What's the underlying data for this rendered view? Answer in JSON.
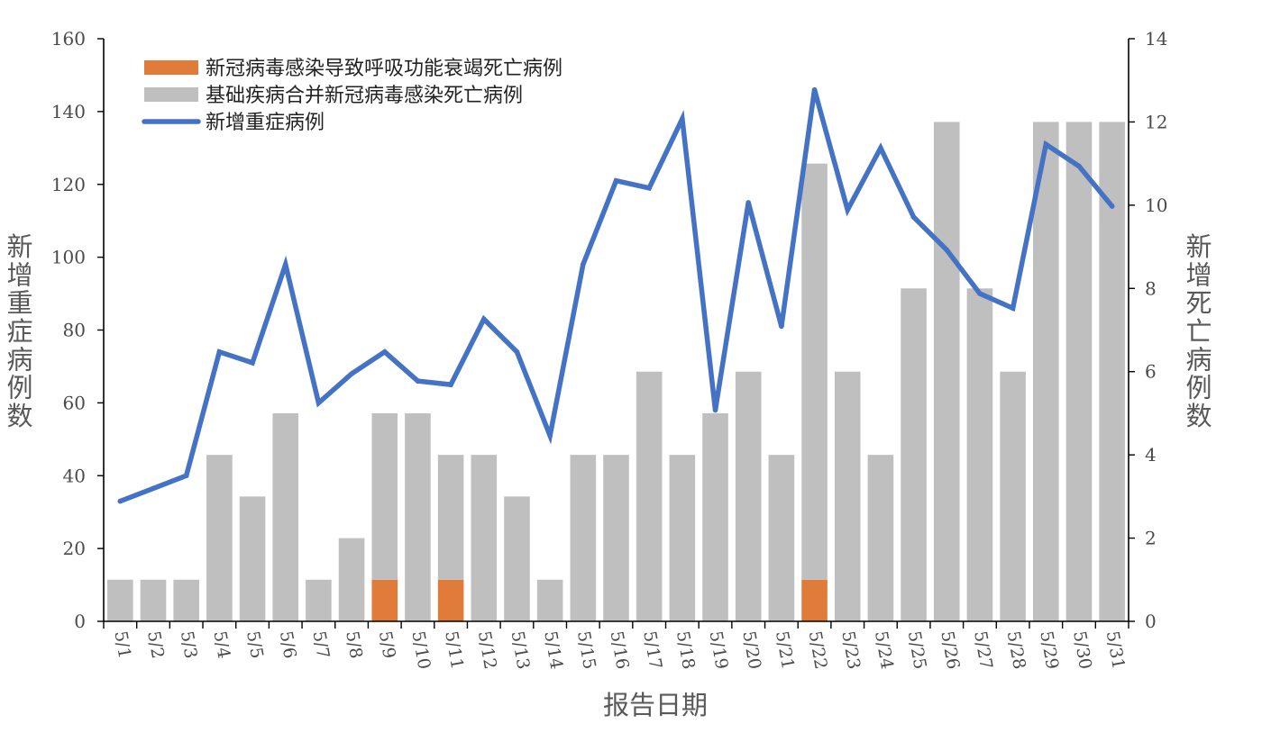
{
  "chart_data": {
    "type": "bar",
    "categories": [
      "5/1",
      "5/2",
      "5/3",
      "5/4",
      "5/5",
      "5/6",
      "5/7",
      "5/8",
      "5/9",
      "5/10",
      "5/11",
      "5/12",
      "5/13",
      "5/14",
      "5/15",
      "5/16",
      "5/17",
      "5/18",
      "5/19",
      "5/20",
      "5/21",
      "5/22",
      "5/23",
      "5/24",
      "5/25",
      "5/26",
      "5/27",
      "5/28",
      "5/29",
      "5/30",
      "5/31"
    ],
    "xlabel": "报告日期",
    "ylabel_left": "新增重症病例数",
    "ylabel_right": "新增死亡病例数",
    "ylim_left": [
      0,
      160
    ],
    "yticks_left": [
      0,
      20,
      40,
      60,
      80,
      100,
      120,
      140,
      160
    ],
    "ylim_right": [
      0,
      14
    ],
    "yticks_right": [
      0,
      2,
      4,
      6,
      8,
      10,
      12,
      14
    ],
    "grid": false,
    "legend_position": "top-left",
    "stacked": true,
    "series": [
      {
        "name": "新冠病毒感染导致呼吸功能衰竭死亡病例",
        "type": "bar",
        "axis": "right",
        "color": "#E07B39",
        "values": [
          0,
          0,
          0,
          0,
          0,
          0,
          0,
          0,
          1,
          0,
          1,
          0,
          0,
          0,
          0,
          0,
          0,
          0,
          0,
          0,
          0,
          1,
          0,
          0,
          0,
          0,
          0,
          0,
          0,
          0,
          0
        ]
      },
      {
        "name": "基础疾病合并新冠病毒感染死亡病例",
        "type": "bar",
        "axis": "right",
        "color": "#BFBFBF",
        "values": [
          1,
          1,
          1,
          4,
          3,
          5,
          1,
          2,
          4,
          5,
          3,
          4,
          3,
          1,
          4,
          4,
          6,
          4,
          5,
          6,
          4,
          10,
          6,
          4,
          8,
          12,
          8,
          6,
          12,
          12,
          12
        ]
      },
      {
        "name": "新增重症病例",
        "type": "line",
        "axis": "left",
        "color": "#4472C4",
        "values": [
          33,
          36.5,
          40,
          74,
          71,
          98,
          60,
          68,
          74,
          66,
          65,
          83,
          74,
          51,
          98,
          121,
          119,
          138,
          58,
          115,
          81,
          146,
          113,
          130,
          111,
          102,
          90,
          86,
          131,
          125,
          114
        ]
      }
    ]
  }
}
